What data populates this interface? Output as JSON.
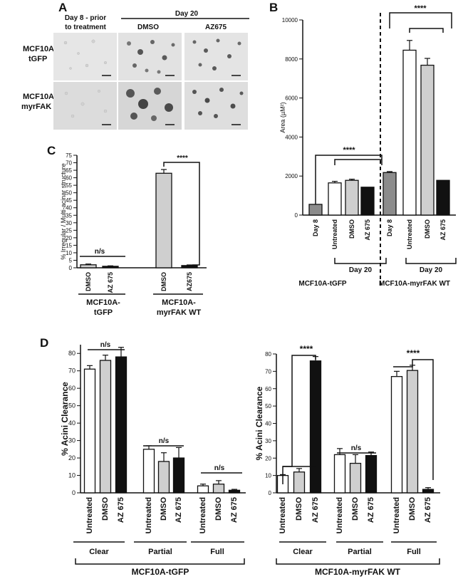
{
  "panels": {
    "A": {
      "letter": "A",
      "col0": "Day 8 - prior to treatment",
      "col0_line1": "Day 8 - prior",
      "col0_line2": "to treatment",
      "day20": "Day 20",
      "col1": "DMSO",
      "col2": "AZ675",
      "row0_line1": "MCF10A-",
      "row0_line2": "tGFP",
      "row1_line1": "MCF10A-",
      "row1_line2": "myrFAK WT"
    },
    "B": {
      "letter": "B"
    },
    "C": {
      "letter": "C"
    },
    "D": {
      "letter": "D"
    }
  },
  "chart_data": [
    {
      "id": "B",
      "type": "bar",
      "ylabel": "Area (µM²)",
      "ylim": [
        0,
        10000
      ],
      "yticks": [
        "0",
        "2000",
        "4000",
        "6000",
        "8000",
        "10000"
      ],
      "categories": [
        "Day 8",
        "Untreated",
        "DMSO",
        "AZ 675",
        "Day 8",
        "Untreated",
        "DMSO",
        "AZ 675"
      ],
      "values": [
        550,
        1650,
        1780,
        1430,
        2180,
        8450,
        7680,
        1780
      ],
      "errors": [
        0,
        80,
        60,
        0,
        50,
        500,
        350,
        0
      ],
      "colors": [
        "#8c8c8c",
        "#ffffff",
        "#cfcfcf",
        "#111111",
        "#8c8c8c",
        "#ffffff",
        "#cfcfcf",
        "#111111"
      ],
      "groups": [
        {
          "label": "Day 20",
          "name": "MCF10A-tGFP"
        },
        {
          "label": "Day 20",
          "name": "MCF10A-myrFAK WT"
        }
      ],
      "significance": [
        "****",
        "****"
      ]
    },
    {
      "id": "C",
      "type": "bar",
      "ylabel": "% Irregular / Multi-acinar structure",
      "ylim": [
        0,
        75
      ],
      "yticks": [
        "0",
        "5",
        "10",
        "15",
        "20",
        "25",
        "30",
        "35",
        "40",
        "45",
        "50",
        "55",
        "60",
        "65",
        "70",
        "75"
      ],
      "categories": [
        "DMSO",
        "AZ 675",
        "DMSO",
        "AZ675"
      ],
      "values": [
        2,
        1,
        63,
        1.5
      ],
      "errors": [
        0.5,
        0.3,
        2.5,
        0.4
      ],
      "colors": [
        "#cfcfcf",
        "#111111",
        "#cfcfcf",
        "#111111"
      ],
      "groups": [
        {
          "name": "MCF10A-tGFP",
          "line1": "MCF10A-",
          "line2": "tGFP"
        },
        {
          "name": "MCF10A-myrFAK WT",
          "line1": "MCF10A-",
          "line2": "myrFAK WT"
        }
      ],
      "significance": [
        "n/s",
        "****"
      ]
    },
    {
      "id": "D-left",
      "type": "bar",
      "ylabel": "% Acini Clearance",
      "ylim": [
        0,
        85
      ],
      "yticks": [
        "0",
        "10",
        "20",
        "30",
        "40",
        "50",
        "60",
        "70",
        "80"
      ],
      "categories": [
        "Untreated",
        "DMSO",
        "AZ 675",
        "Untreated",
        "DMSO",
        "AZ 675",
        "Untreated",
        "DMSO",
        "AZ 675"
      ],
      "values": [
        71,
        76,
        78,
        25,
        18,
        20,
        4,
        5,
        1.5
      ],
      "errors": [
        2,
        3,
        5.5,
        2,
        5,
        6,
        1,
        2,
        0.5
      ],
      "colors": [
        "#ffffff",
        "#cfcfcf",
        "#111111",
        "#ffffff",
        "#cfcfcf",
        "#111111",
        "#ffffff",
        "#cfcfcf",
        "#111111"
      ],
      "groups": [
        "Clear",
        "Partial",
        "Full"
      ],
      "significance": [
        "n/s",
        "n/s",
        "n/s"
      ],
      "footer": "MCF10A-tGFP"
    },
    {
      "id": "D-right",
      "type": "bar",
      "ylabel": "% Acini Clearance",
      "ylim": [
        0,
        80
      ],
      "yticks": [
        "0",
        "10",
        "20",
        "30",
        "40",
        "50",
        "60",
        "70",
        "80"
      ],
      "categories": [
        "Untreated",
        "DMSO",
        "AZ 675",
        "Untreated",
        "DMSO",
        "AZ 675",
        "Untreated",
        "DMSO",
        "AZ 675"
      ],
      "values": [
        10,
        12,
        76,
        22,
        17,
        21.5,
        67,
        70.5,
        2
      ],
      "errors": [
        0.5,
        2,
        2.5,
        3.5,
        5,
        2,
        3,
        3,
        1
      ],
      "colors": [
        "#ffffff",
        "#cfcfcf",
        "#111111",
        "#ffffff",
        "#cfcfcf",
        "#111111",
        "#ffffff",
        "#cfcfcf",
        "#111111"
      ],
      "groups": [
        "Clear",
        "Partial",
        "Full"
      ],
      "significance": [
        "****",
        "n/s",
        "****"
      ],
      "footer": "MCF10A-myrFAK WT"
    }
  ]
}
